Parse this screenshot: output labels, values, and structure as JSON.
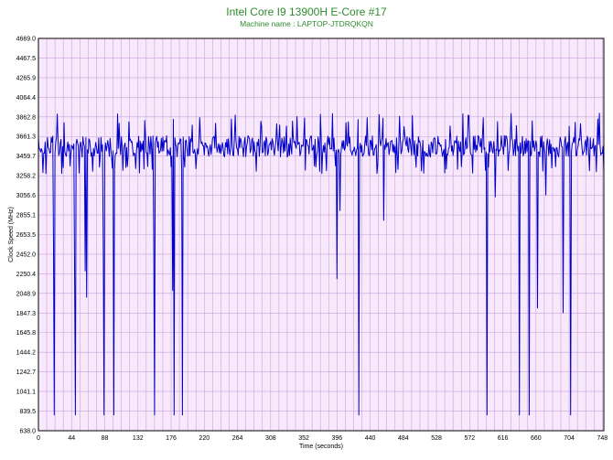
{
  "chart_data": {
    "type": "line",
    "title": "Intel Core I9 13900H E-Core #17",
    "subtitle": "Machine name : LAPTOP-JTDRQKQN",
    "xlabel": "Time (seconds)",
    "ylabel": "Clock Speed (MHz)",
    "xlim": [
      0,
      750
    ],
    "ylim": [
      638.0,
      4669.0
    ],
    "x_ticks": [
      0,
      44,
      88,
      132,
      176,
      220,
      264,
      308,
      352,
      396,
      440,
      484,
      528,
      572,
      616,
      660,
      704,
      748
    ],
    "y_ticks": [
      "638.0",
      "839.5",
      "1041.1",
      "1242.7",
      "1444.2",
      "1645.8",
      "1847.3",
      "2048.9",
      "2250.4",
      "2452.0",
      "2653.5",
      "2855.1",
      "3056.6",
      "3258.2",
      "3459.7",
      "3661.3",
      "3862.8",
      "4064.4",
      "4265.9",
      "4467.5",
      "4669.0"
    ],
    "grid": true,
    "series": [
      {
        "color": "#0000c8",
        "baseline": 3560,
        "amplitude": 110,
        "dips": [
          {
            "x": 20,
            "y": 2510
          },
          {
            "x": 21,
            "y": 800
          },
          {
            "x": 48,
            "y": 2170
          },
          {
            "x": 49,
            "y": 800
          },
          {
            "x": 62,
            "y": 2280
          },
          {
            "x": 64,
            "y": 2010
          },
          {
            "x": 86,
            "y": 2510
          },
          {
            "x": 87,
            "y": 800
          },
          {
            "x": 100,
            "y": 800
          },
          {
            "x": 153,
            "y": 2500
          },
          {
            "x": 154,
            "y": 800
          },
          {
            "x": 178,
            "y": 2080
          },
          {
            "x": 180,
            "y": 800
          },
          {
            "x": 191,
            "y": 800
          },
          {
            "x": 396,
            "y": 2200
          },
          {
            "x": 400,
            "y": 2900
          },
          {
            "x": 425,
            "y": 800
          },
          {
            "x": 458,
            "y": 2800
          },
          {
            "x": 595,
            "y": 800
          },
          {
            "x": 606,
            "y": 3040
          },
          {
            "x": 638,
            "y": 800
          },
          {
            "x": 651,
            "y": 800
          },
          {
            "x": 662,
            "y": 1900
          },
          {
            "x": 673,
            "y": 3060
          },
          {
            "x": 696,
            "y": 1850
          },
          {
            "x": 706,
            "y": 800
          },
          {
            "x": 740,
            "y": 3300
          }
        ]
      }
    ]
  }
}
